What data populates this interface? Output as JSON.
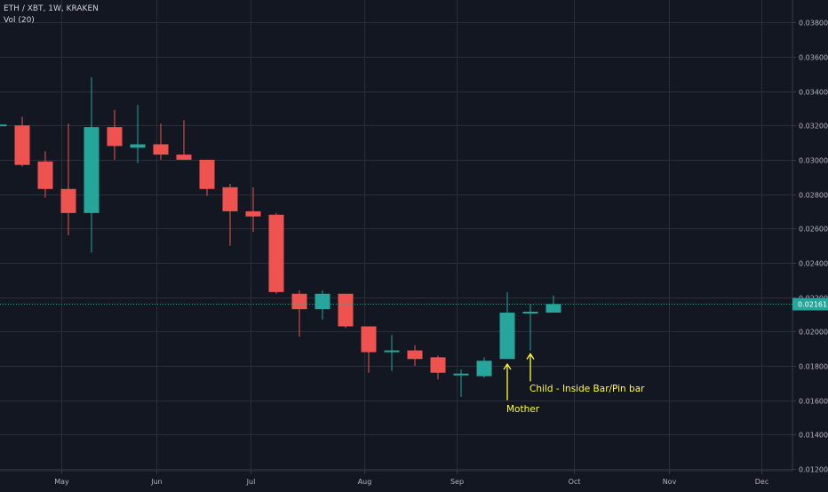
{
  "legend": {
    "symbol_line": "ETH / XBT, 1W, KRAKEN",
    "volume_line": "Vol (20)"
  },
  "colors": {
    "background": "#131722",
    "grid": "#2a2e39",
    "axis_text": "#b2b5be",
    "bull": "#26a69a",
    "bear": "#ef5350",
    "last_price_tag": "#26a69a",
    "annotation": "#ffff33"
  },
  "chart_data": {
    "type": "candlestick",
    "title": "",
    "ylim": [
      0.0119,
      0.0393
    ],
    "y_ticks": [
      "0.03800",
      "0.03600",
      "0.03400",
      "0.03200",
      "0.03000",
      "0.02800",
      "0.02600",
      "0.02400",
      "0.02200",
      "0.02000",
      "0.01800",
      "0.01600",
      "0.01400",
      "0.01200"
    ],
    "x_ticks": [
      {
        "label": "May",
        "index": 2.7
      },
      {
        "label": "Jun",
        "index": 6.8
      },
      {
        "label": "Jul",
        "index": 10.9
      },
      {
        "label": "Aug",
        "index": 15.8
      },
      {
        "label": "Sep",
        "index": 19.8
      },
      {
        "label": "Oct",
        "index": 24.9
      },
      {
        "label": "Nov",
        "index": 29.0
      },
      {
        "label": "Dec",
        "index": 33.0
      }
    ],
    "candles": [
      {
        "o": 0.032,
        "h": 0.0322,
        "l": 0.0318,
        "c": 0.032
      },
      {
        "o": 0.032,
        "h": 0.0325,
        "l": 0.0296,
        "c": 0.0297
      },
      {
        "o": 0.0299,
        "h": 0.0305,
        "l": 0.0278,
        "c": 0.0283
      },
      {
        "o": 0.0283,
        "h": 0.0321,
        "l": 0.0256,
        "c": 0.0269
      },
      {
        "o": 0.0269,
        "h": 0.0348,
        "l": 0.0246,
        "c": 0.0319
      },
      {
        "o": 0.0319,
        "h": 0.0329,
        "l": 0.03,
        "c": 0.0308
      },
      {
        "o": 0.0307,
        "h": 0.0332,
        "l": 0.0298,
        "c": 0.0309
      },
      {
        "o": 0.0309,
        "h": 0.0321,
        "l": 0.03,
        "c": 0.0303
      },
      {
        "o": 0.0303,
        "h": 0.0323,
        "l": 0.03,
        "c": 0.03
      },
      {
        "o": 0.03,
        "h": 0.03,
        "l": 0.0279,
        "c": 0.0283
      },
      {
        "o": 0.0284,
        "h": 0.0286,
        "l": 0.025,
        "c": 0.027
      },
      {
        "o": 0.027,
        "h": 0.0284,
        "l": 0.0258,
        "c": 0.0267
      },
      {
        "o": 0.0268,
        "h": 0.0269,
        "l": 0.0222,
        "c": 0.0223
      },
      {
        "o": 0.0222,
        "h": 0.0224,
        "l": 0.0197,
        "c": 0.0213
      },
      {
        "o": 0.0213,
        "h": 0.0224,
        "l": 0.0207,
        "c": 0.0222
      },
      {
        "o": 0.0222,
        "h": 0.0222,
        "l": 0.0202,
        "c": 0.0203
      },
      {
        "o": 0.0203,
        "h": 0.0203,
        "l": 0.0176,
        "c": 0.0188
      },
      {
        "o": 0.0188,
        "h": 0.0198,
        "l": 0.0177,
        "c": 0.0189
      },
      {
        "o": 0.0189,
        "h": 0.0192,
        "l": 0.018,
        "c": 0.0184
      },
      {
        "o": 0.0185,
        "h": 0.0186,
        "l": 0.0172,
        "c": 0.0176
      },
      {
        "o": 0.0175,
        "h": 0.0178,
        "l": 0.0162,
        "c": 0.0175
      },
      {
        "o": 0.0174,
        "h": 0.0185,
        "l": 0.0173,
        "c": 0.0183
      },
      {
        "o": 0.0184,
        "h": 0.0223,
        "l": 0.0184,
        "c": 0.0211
      },
      {
        "o": 0.0211,
        "h": 0.0216,
        "l": 0.0189,
        "c": 0.0211
      },
      {
        "o": 0.0211,
        "h": 0.0221,
        "l": 0.0211,
        "c": 0.0216
      }
    ],
    "last_price": {
      "value": 0.02161,
      "label": "0.02161"
    },
    "annotations": [
      {
        "text": "Mother",
        "candle_index": 22,
        "arrow_y": 0.0181,
        "arrow_y_end": 0.016,
        "text_y": 0.0153
      },
      {
        "text": "Child - Inside Bar/Pin bar",
        "candle_index": 23,
        "arrow_y": 0.0187,
        "arrow_y_end": 0.0171,
        "text_y": 0.0165
      }
    ]
  }
}
